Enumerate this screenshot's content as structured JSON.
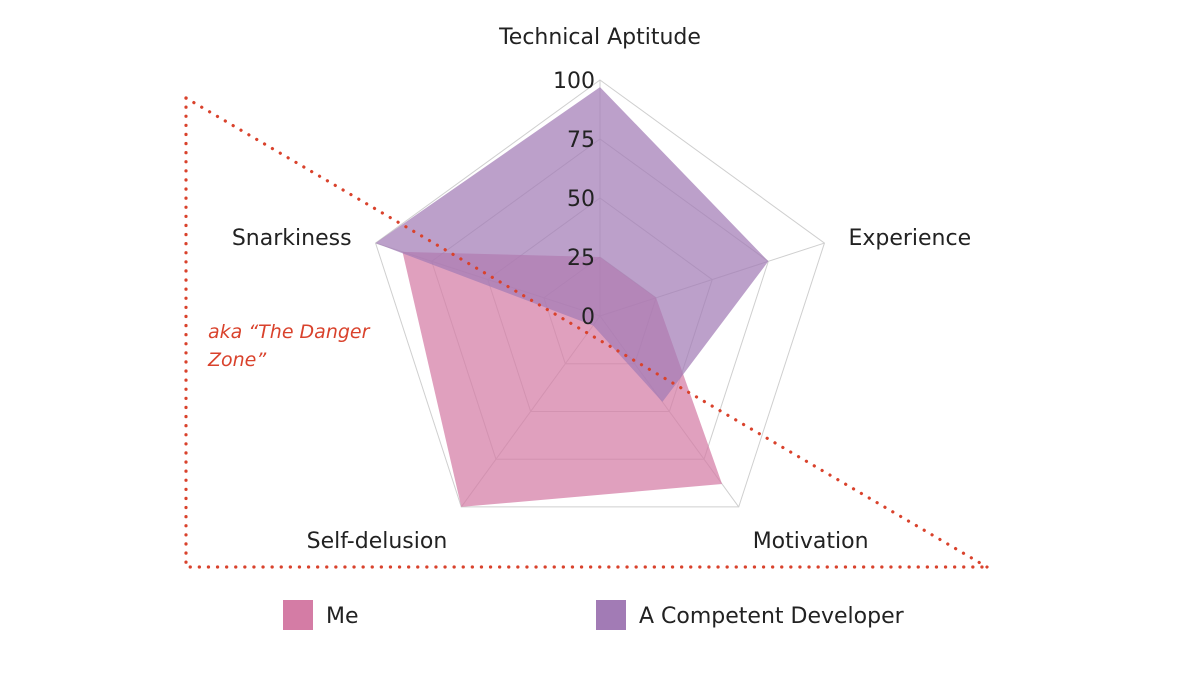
{
  "chart_data": {
    "type": "radar",
    "axes": [
      "Technical Aptitude",
      "Experience",
      "Motivation",
      "Self-delusion",
      "Snarkiness"
    ],
    "ticks": [
      0,
      25,
      50,
      75,
      100
    ],
    "range": [
      0,
      100
    ],
    "grid": true,
    "series": [
      {
        "name": "Me",
        "color": "#d47ca5",
        "opacity": 0.72,
        "values": [
          25,
          25,
          88,
          100,
          88
        ]
      },
      {
        "name": "A Competent Developer",
        "color": "#a27bb5",
        "opacity": 0.72,
        "values": [
          97,
          75,
          45,
          5,
          100
        ]
      }
    ],
    "legend": "bottom",
    "annotation": {
      "lines": [
        "aka “The Danger",
        "Zone”"
      ],
      "color": "#d9422c"
    }
  }
}
